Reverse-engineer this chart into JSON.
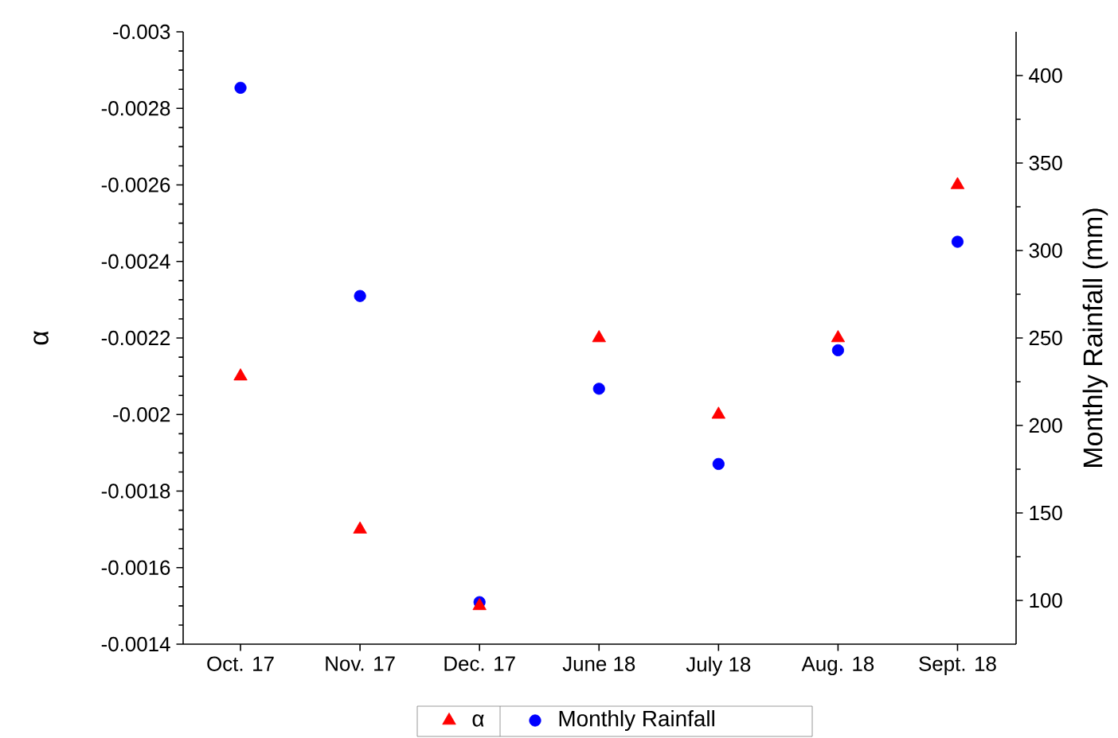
{
  "chart_data": {
    "type": "scatter",
    "ylabel": "α",
    "y2label": "Monthly Rainfall (mm)",
    "categories": [
      "Oct. 17",
      "Nov. 17",
      "Dec. 17",
      "June 18",
      "July 18",
      "Aug. 18",
      "Sept. 18"
    ],
    "series": [
      {
        "name": "α",
        "color": "#ff0000",
        "marker": "triangle",
        "values": [
          -0.0021,
          -0.0017,
          -0.0015,
          -0.0022,
          -0.002,
          -0.0022,
          -0.0026
        ]
      },
      {
        "name": "Monthly Rainfall",
        "color": "#0000ff",
        "marker": "circle",
        "axis": "y2",
        "values": [
          393,
          274,
          99,
          221,
          178,
          243,
          305
        ]
      }
    ],
    "ylim": [
      -0.0014,
      -0.003
    ],
    "yticks": [
      -0.003,
      -0.0028,
      -0.0026,
      -0.0024,
      -0.0022,
      -0.002,
      -0.0018,
      -0.0016,
      -0.0014
    ],
    "y2lim": [
      75,
      425
    ],
    "y2ticks": [
      100,
      150,
      200,
      250,
      300,
      350,
      400
    ],
    "grid": false,
    "legend": "bottom"
  }
}
